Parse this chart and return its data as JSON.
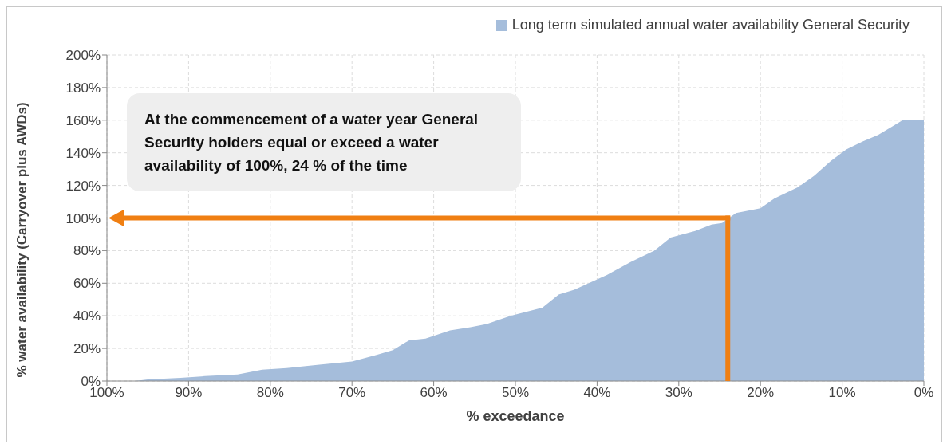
{
  "chart_data": {
    "type": "area",
    "xlabel": "% exceedance",
    "ylabel": "% water availability (Carryover plus AWDs)",
    "x": [
      100,
      96.6,
      95,
      91,
      88,
      84,
      81,
      78,
      74,
      70,
      67,
      65,
      63,
      61,
      58,
      55.5,
      53.5,
      50.6,
      46.7,
      44.7,
      42.8,
      38.8,
      35.9,
      33,
      31,
      28,
      26,
      24.7,
      23,
      20,
      18.3,
      15.4,
      13.4,
      11.4,
      9.5,
      7.5,
      5.6,
      3.6,
      2.6,
      0
    ],
    "series": [
      {
        "name": "Long term simulated annual water availability General Security",
        "color": "#a5bddb",
        "values": [
          0,
          0,
          1,
          2,
          3,
          4,
          7,
          8,
          10,
          12,
          16,
          19,
          25,
          26,
          31,
          33,
          35,
          40,
          45,
          53,
          56,
          65,
          73,
          80,
          88,
          92,
          96,
          97,
          103,
          106,
          112,
          119,
          126,
          135,
          142,
          147,
          151,
          157,
          160,
          160
        ]
      }
    ],
    "xlim": [
      100,
      0
    ],
    "xticks": [
      {
        "value": 100,
        "label": "100%"
      },
      {
        "value": 90,
        "label": "90%"
      },
      {
        "value": 80,
        "label": "80%"
      },
      {
        "value": 70,
        "label": "70%"
      },
      {
        "value": 60,
        "label": "60%"
      },
      {
        "value": 50,
        "label": "50%"
      },
      {
        "value": 40,
        "label": "40%"
      },
      {
        "value": 30,
        "label": "30%"
      },
      {
        "value": 20,
        "label": "20%"
      },
      {
        "value": 10,
        "label": "10%"
      },
      {
        "value": 0,
        "label": "0%"
      }
    ],
    "ylim": [
      0,
      200
    ],
    "yticks": [
      {
        "value": 0,
        "label": "0%"
      },
      {
        "value": 20,
        "label": "20%"
      },
      {
        "value": 40,
        "label": "40%"
      },
      {
        "value": 60,
        "label": "60%"
      },
      {
        "value": 80,
        "label": "80%"
      },
      {
        "value": 100,
        "label": "100%"
      },
      {
        "value": 120,
        "label": "120%"
      },
      {
        "value": 140,
        "label": "140%"
      },
      {
        "value": 160,
        "label": "160%"
      },
      {
        "value": 180,
        "label": "180%"
      },
      {
        "value": 200,
        "label": "200%"
      }
    ],
    "annotations": [
      "At the commencement of a water year General Security holders equal or exceed a water availability  of 100%, 24 % of the time"
    ],
    "ref_lines": [
      {
        "axis": "y",
        "value": 100,
        "color": "#f07f12"
      },
      {
        "axis": "x",
        "value": 24,
        "color": "#f07f12"
      }
    ],
    "grid": true,
    "legend": "top right"
  }
}
